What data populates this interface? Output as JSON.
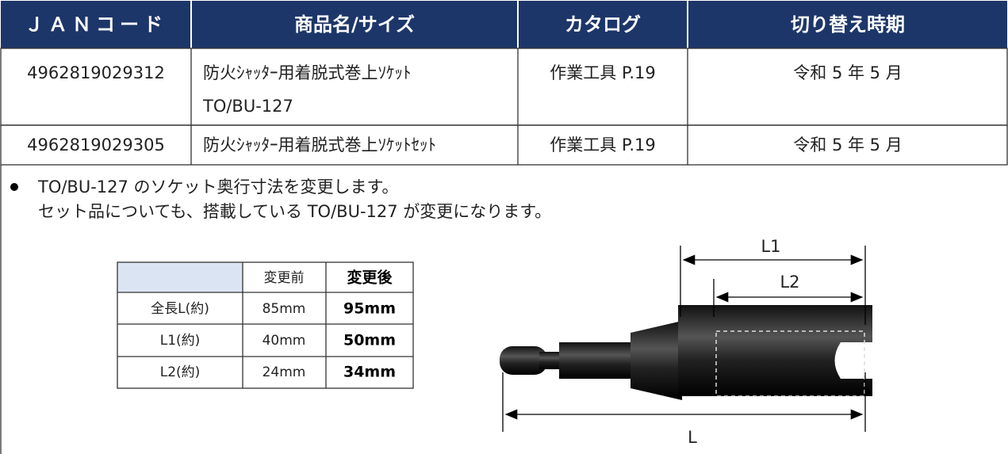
{
  "main_table": {
    "header": [
      "ＪＡＮコード",
      "商品名/サイズ",
      "カタログ",
      "切り替え時期"
    ],
    "rows": [
      [
        "4962819029312",
        [
          "防火ｼｬｯﾀｰ用着脱式巻上ｿｹｯﾄ",
          "TO/BU-127"
        ],
        "作業工具 P.19",
        "令和 5 年 5 月"
      ],
      [
        "4962819029305",
        [
          "防火ｼｬｯﾀｰ用着脱式巻上ｿｹｯﾄｾｯﾄ"
        ],
        "作業工具 P.19",
        "令和 5 年 5 月"
      ]
    ]
  },
  "notes": [
    "TO/BU-127 のソケット奥行寸法を変更します。",
    "セット品についても、搭載している TO/BU-127 が変更になります。"
  ],
  "spec_table": {
    "header": [
      "変更前",
      "変更後"
    ],
    "rows": [
      [
        "全長L(約)",
        "85mm",
        "95mm"
      ],
      [
        "L1(約)",
        "40mm",
        "50mm"
      ],
      [
        "L2(約)",
        "24mm",
        "34mm"
      ]
    ]
  },
  "diagram": {
    "labels": [
      "L1",
      "L2",
      "L"
    ]
  }
}
